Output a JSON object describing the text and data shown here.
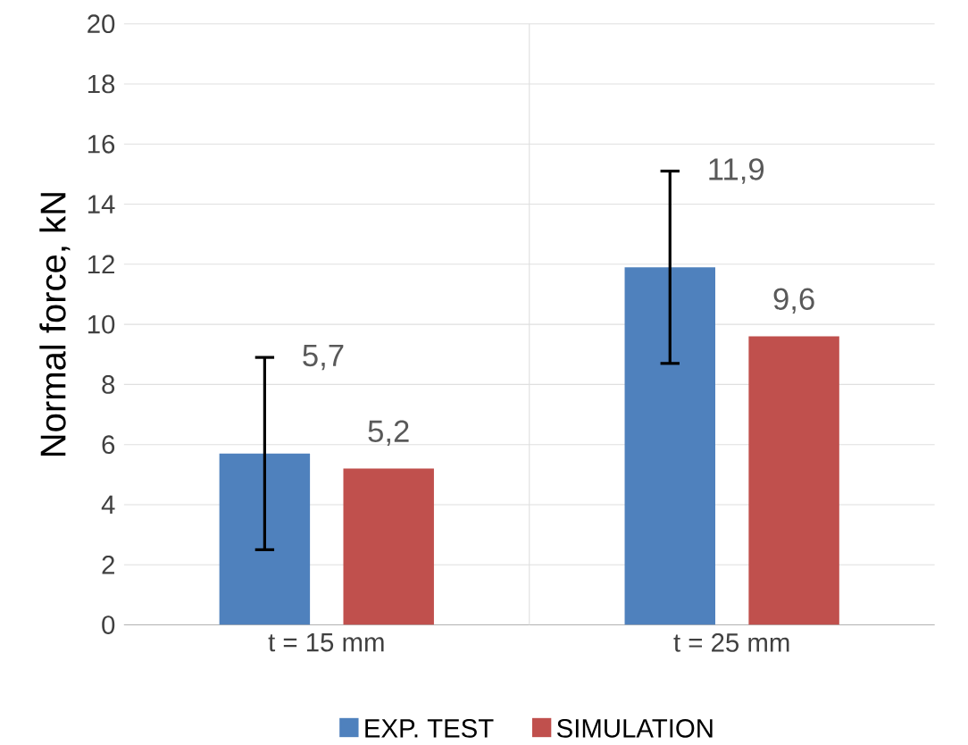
{
  "chart_data": {
    "type": "bar",
    "ylabel": "Normal force, kN",
    "categories": [
      "t = 15 mm",
      "t = 25 mm"
    ],
    "series": [
      {
        "name": "EXP. TEST",
        "color": "#4f81bd",
        "values": [
          5.7,
          11.9
        ],
        "errors": [
          3.2,
          3.2
        ],
        "value_labels": [
          "5,7",
          "11,9"
        ]
      },
      {
        "name": "SIMULATION",
        "color": "#c0504d",
        "values": [
          5.2,
          9.6
        ],
        "value_labels": [
          "5,2",
          "9,6"
        ]
      }
    ],
    "ylim": [
      0,
      20
    ],
    "yticks": [
      0,
      2,
      4,
      6,
      8,
      10,
      12,
      14,
      16,
      18,
      20
    ],
    "grid": true,
    "legend": "bottom"
  }
}
